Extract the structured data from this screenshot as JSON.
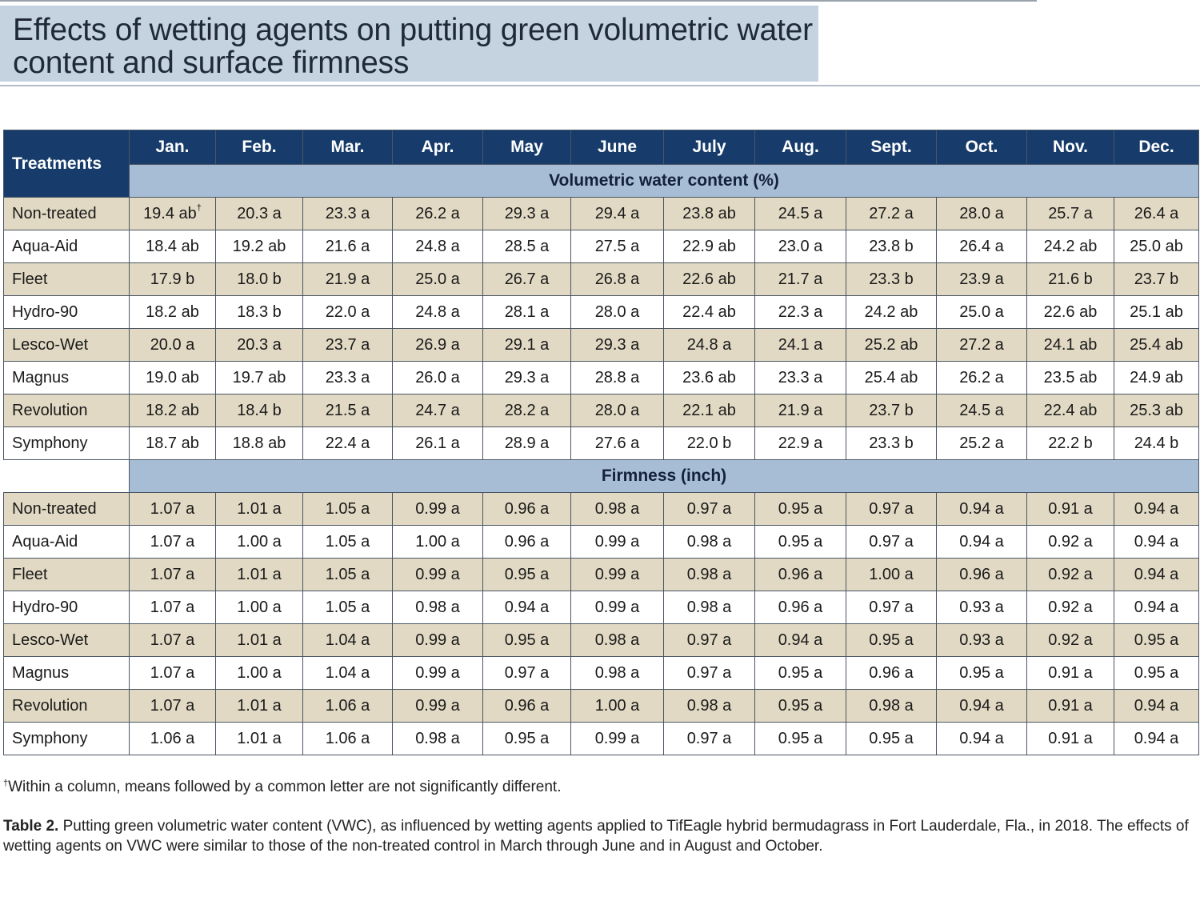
{
  "title": "Effects of wetting agents on putting green volumetric water content and surface firmness",
  "table": {
    "corner_label": "Treatments",
    "months": [
      "Jan.",
      "Feb.",
      "Mar.",
      "Apr.",
      "May",
      "June",
      "July",
      "Aug.",
      "Sept.",
      "Oct.",
      "Nov.",
      "Dec."
    ],
    "vwc_header": "Volumetric water content (%)",
    "vwc_rows": [
      {
        "name": "Non-treated",
        "values": [
          "19.4 ab",
          "20.3 a",
          "23.3 a",
          "26.2 a",
          "29.3 a",
          "29.4 a",
          "23.8 ab",
          "24.5 a",
          "27.2 a",
          "28.0 a",
          "25.7 a",
          "26.4 a"
        ]
      },
      {
        "name": "Aqua-Aid",
        "values": [
          "18.4 ab",
          "19.2 ab",
          "21.6 a",
          "24.8 a",
          "28.5 a",
          "27.5 a",
          "22.9 ab",
          "23.0 a",
          "23.8 b",
          "26.4 a",
          "24.2 ab",
          "25.0 ab"
        ]
      },
      {
        "name": "Fleet",
        "values": [
          "17.9 b",
          "18.0 b",
          "21.9 a",
          "25.0 a",
          "26.7 a",
          "26.8 a",
          "22.6 ab",
          "21.7 a",
          "23.3 b",
          "23.9 a",
          "21.6 b",
          "23.7 b"
        ]
      },
      {
        "name": "Hydro-90",
        "values": [
          "18.2 ab",
          "18.3 b",
          "22.0 a",
          "24.8 a",
          "28.1 a",
          "28.0 a",
          "22.4 ab",
          "22.3 a",
          "24.2 ab",
          "25.0 a",
          "22.6 ab",
          "25.1 ab"
        ]
      },
      {
        "name": "Lesco-Wet",
        "values": [
          "20.0 a",
          "20.3 a",
          "23.7 a",
          "26.9 a",
          "29.1 a",
          "29.3 a",
          "24.8 a",
          "24.1 a",
          "25.2 ab",
          "27.2 a",
          "24.1 ab",
          "25.4 ab"
        ]
      },
      {
        "name": "Magnus",
        "values": [
          "19.0 ab",
          "19.7 ab",
          "23.3 a",
          "26.0 a",
          "29.3 a",
          "28.8 a",
          "23.6 ab",
          "23.3 a",
          "25.4 ab",
          "26.2 a",
          "23.5 ab",
          "24.9 ab"
        ]
      },
      {
        "name": "Revolution",
        "values": [
          "18.2 ab",
          "18.4 b",
          "21.5 a",
          "24.7 a",
          "28.2 a",
          "28.0 a",
          "22.1 ab",
          "21.9 a",
          "23.7 b",
          "24.5 a",
          "22.4 ab",
          "25.3 ab"
        ]
      },
      {
        "name": "Symphony",
        "values": [
          "18.7 ab",
          "18.8 ab",
          "22.4 a",
          "26.1 a",
          "28.9 a",
          "27.6 a",
          "22.0 b",
          "22.9 a",
          "23.3 b",
          "25.2 a",
          "22.2 b",
          "24.4 b"
        ]
      }
    ],
    "firmness_header": "Firmness (inch)",
    "firmness_rows": [
      {
        "name": "Non-treated",
        "values": [
          "1.07 a",
          "1.01 a",
          "1.05 a",
          "0.99 a",
          "0.96 a",
          "0.98 a",
          "0.97 a",
          "0.95 a",
          "0.97 a",
          "0.94 a",
          "0.91 a",
          "0.94 a"
        ]
      },
      {
        "name": "Aqua-Aid",
        "values": [
          "1.07 a",
          "1.00 a",
          "1.05 a",
          "1.00 a",
          "0.96 a",
          "0.99 a",
          "0.98 a",
          "0.95 a",
          "0.97 a",
          "0.94 a",
          "0.92 a",
          "0.94 a"
        ]
      },
      {
        "name": "Fleet",
        "values": [
          "1.07 a",
          "1.01 a",
          "1.05 a",
          "0.99 a",
          "0.95 a",
          "0.99 a",
          "0.98 a",
          "0.96 a",
          "1.00 a",
          "0.96 a",
          "0.92 a",
          "0.94 a"
        ]
      },
      {
        "name": "Hydro-90",
        "values": [
          "1.07 a",
          "1.00 a",
          "1.05 a",
          "0.98 a",
          "0.94 a",
          "0.99 a",
          "0.98 a",
          "0.96 a",
          "0.97 a",
          "0.93 a",
          "0.92 a",
          "0.94 a"
        ]
      },
      {
        "name": "Lesco-Wet",
        "values": [
          "1.07 a",
          "1.01 a",
          "1.04 a",
          "0.99 a",
          "0.95 a",
          "0.98 a",
          "0.97 a",
          "0.94 a",
          "0.95 a",
          "0.93 a",
          "0.92 a",
          "0.95 a"
        ]
      },
      {
        "name": "Magnus",
        "values": [
          "1.07 a",
          "1.00 a",
          "1.04 a",
          "0.99 a",
          "0.97 a",
          "0.98 a",
          "0.97 a",
          "0.95 a",
          "0.96 a",
          "0.95 a",
          "0.91 a",
          "0.95 a"
        ]
      },
      {
        "name": "Revolution",
        "values": [
          "1.07 a",
          "1.01 a",
          "1.06 a",
          "0.99 a",
          "0.96 a",
          "1.00 a",
          "0.98 a",
          "0.95 a",
          "0.98 a",
          "0.94 a",
          "0.91 a",
          "0.94 a"
        ]
      },
      {
        "name": "Symphony",
        "values": [
          "1.06 a",
          "1.01 a",
          "1.06 a",
          "0.98 a",
          "0.95 a",
          "0.99 a",
          "0.97 a",
          "0.95 a",
          "0.95 a",
          "0.94 a",
          "0.91 a",
          "0.94 a"
        ]
      }
    ]
  },
  "footnote": {
    "marker": "†",
    "text": "Within a column, means followed by a common letter are not significantly different."
  },
  "caption": {
    "label": "Table 2.",
    "text": " Putting green volumetric water content (VWC), as influenced by wetting agents applied to TifEagle hybrid bermudagrass in Fort Lauderdale, Fla., in 2018. The effects of wetting agents on VWC were similar to those of the non-treated control in March through June and in August and October."
  }
}
